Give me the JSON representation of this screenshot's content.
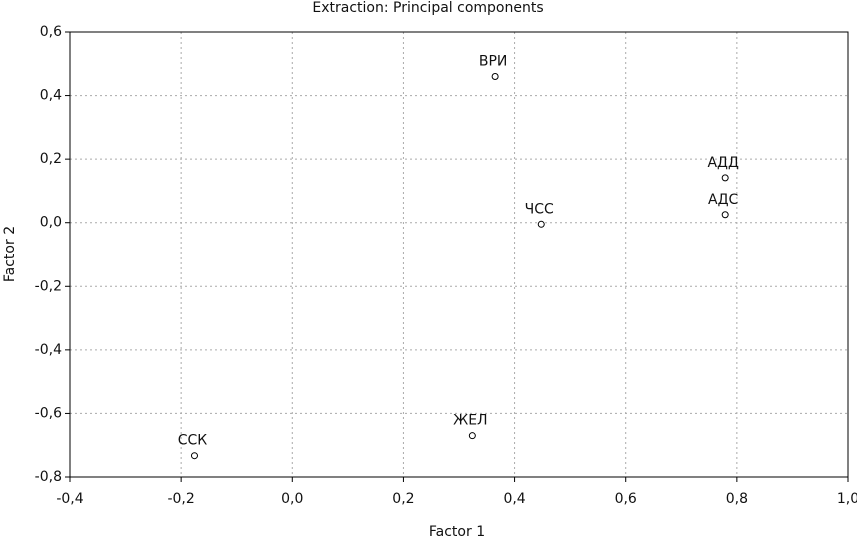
{
  "chart_data": {
    "type": "scatter",
    "title": "Extraction: Principal components",
    "x_label": "Factor 1",
    "y_label": "Factor 2",
    "labels": [
      "ВРИ",
      "ЧСС",
      "АДД",
      "АДС",
      "ЖЕЛ",
      "ССК"
    ],
    "x": [
      0.365,
      0.448,
      0.779,
      0.779,
      0.324,
      -0.176
    ],
    "values": [
      0.46,
      -0.005,
      0.141,
      0.025,
      -0.67,
      -0.733
    ],
    "color": "#000000",
    "xlim": [
      -0.4,
      1.0
    ],
    "xticks": [
      {
        "value": -0.4,
        "label": "-0,4"
      },
      {
        "value": -0.2,
        "label": "-0,2"
      },
      {
        "value": 0,
        "label": "0,0"
      },
      {
        "value": 0.2,
        "label": "0,2"
      },
      {
        "value": 0.4,
        "label": "0,4"
      },
      {
        "value": 0.6,
        "label": "0,6"
      },
      {
        "value": 0.8,
        "label": "0,8"
      },
      {
        "value": 1.0,
        "label": "1,0"
      }
    ],
    "ylim": [
      -0.8,
      0.6
    ],
    "yticks": [
      {
        "value": 0.6,
        "label": "0,6"
      },
      {
        "value": 0.4,
        "label": "0,4"
      },
      {
        "value": 0.2,
        "label": "0,2"
      },
      {
        "value": 0,
        "label": "0,0"
      },
      {
        "value": -0.2,
        "label": "-0,2"
      },
      {
        "value": -0.4,
        "label": "-0,4"
      },
      {
        "value": -0.6,
        "label": "-0,6"
      },
      {
        "value": -0.8,
        "label": "-0,8"
      }
    ],
    "grid": true
  }
}
